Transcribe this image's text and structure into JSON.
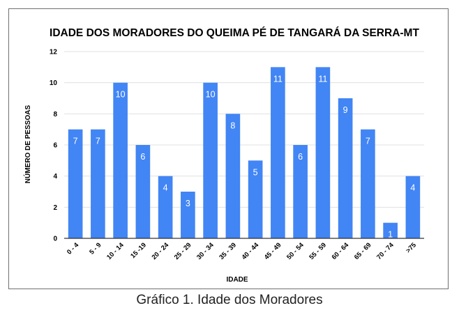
{
  "caption": "Gráfico 1. Idade dos Moradores",
  "colors": {
    "bar": "#4285f4",
    "grid": "#e0e0e0",
    "axis": "#333333",
    "bar_label": "#ffffff",
    "text": "#000000"
  },
  "chart_data": {
    "type": "bar",
    "title": "IDADE DOS MORADORES DO QUEIMA PÉ DE TANGARÁ DA SERRA-MT",
    "xlabel": "IDADE",
    "ylabel": "NÚMERO DE PESSOAS",
    "categories": [
      "0 - 4",
      "5 - 9",
      "10 - 14",
      "15 -19",
      "20 - 24",
      "25 - 29",
      "30 - 34",
      "35 - 39",
      "40 - 44",
      "45 - 49",
      "50 - 54",
      "55 - 59",
      "60 - 64",
      "65 - 69",
      "70 - 74",
      ">75"
    ],
    "values": [
      7,
      7,
      10,
      6,
      4,
      3,
      10,
      8,
      5,
      11,
      6,
      11,
      9,
      7,
      1,
      4
    ],
    "ylim": [
      0,
      12
    ],
    "yticks": [
      0,
      2,
      4,
      6,
      8,
      10,
      12
    ],
    "grid": true,
    "data_labels": true
  }
}
